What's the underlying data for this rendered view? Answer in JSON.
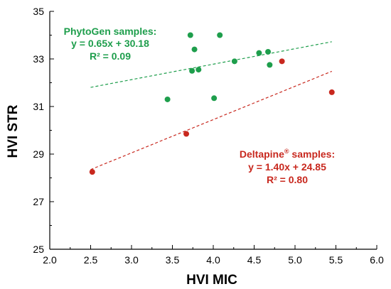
{
  "chart_data": {
    "type": "scatter",
    "xlabel": "HVI MIC",
    "ylabel": "HVI STR",
    "xlim": [
      2.0,
      6.0
    ],
    "ylim": [
      25,
      35
    ],
    "x_ticks": [
      "2.0",
      "2.5",
      "3.0",
      "3.5",
      "4.0",
      "4.5",
      "5.0",
      "5.5",
      "6.0"
    ],
    "y_ticks": [
      "25",
      "27",
      "29",
      "31",
      "33",
      "35"
    ],
    "grid": false,
    "series": [
      {
        "name": "PhytoGen samples",
        "color": "#1e9e4c",
        "points": [
          {
            "x": 3.44,
            "y": 31.3
          },
          {
            "x": 3.72,
            "y": 34.0
          },
          {
            "x": 3.74,
            "y": 32.5
          },
          {
            "x": 3.77,
            "y": 33.4
          },
          {
            "x": 3.82,
            "y": 32.55
          },
          {
            "x": 4.01,
            "y": 31.35
          },
          {
            "x": 4.08,
            "y": 34.0
          },
          {
            "x": 4.26,
            "y": 32.9
          },
          {
            "x": 4.56,
            "y": 33.25
          },
          {
            "x": 4.67,
            "y": 33.3
          },
          {
            "x": 4.69,
            "y": 32.75
          }
        ],
        "fit": {
          "slope": 0.65,
          "intercept": 30.18,
          "x_range": [
            2.5,
            5.45
          ]
        },
        "annotation": {
          "title": "PhytoGen samples:",
          "equation": "y = 0.65x + 30.18",
          "r2": "R² = 0.09"
        }
      },
      {
        "name": "Deltapine® samples",
        "color": "#c8281e",
        "points": [
          {
            "x": 2.52,
            "y": 28.25
          },
          {
            "x": 3.67,
            "y": 29.85
          },
          {
            "x": 4.84,
            "y": 32.9
          },
          {
            "x": 5.45,
            "y": 31.6
          }
        ],
        "fit": {
          "slope": 1.4,
          "intercept": 24.85,
          "x_range": [
            2.5,
            5.45
          ]
        },
        "annotation": {
          "title_main": "Deltapine",
          "title_sup": "®",
          "title_end": " samples:",
          "equation": "y = 1.40x + 24.85",
          "r2": "R² = 0.80"
        }
      }
    ]
  }
}
